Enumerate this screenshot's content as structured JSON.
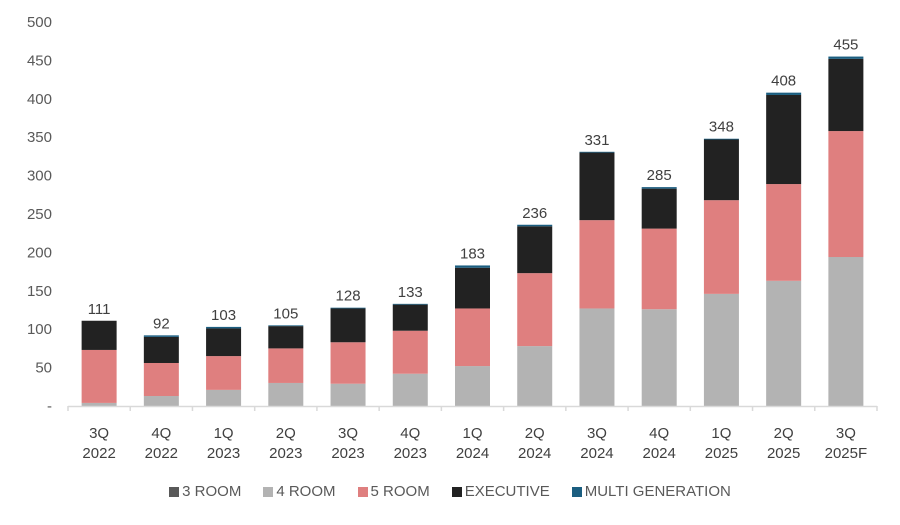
{
  "chart_data": {
    "type": "bar",
    "stacked": true,
    "title": "",
    "xlabel": "",
    "ylabel": "",
    "ylim": [
      0,
      500
    ],
    "yticks": [
      0,
      50,
      100,
      150,
      200,
      250,
      300,
      350,
      400,
      450,
      500
    ],
    "ytick_labels": [
      "-",
      "50",
      "100",
      "150",
      "200",
      "250",
      "300",
      "350",
      "400",
      "450",
      "500"
    ],
    "grid": false,
    "legend_position": "bottom",
    "categories": [
      [
        "3Q",
        "2022"
      ],
      [
        "4Q",
        "2022"
      ],
      [
        "1Q",
        "2023"
      ],
      [
        "2Q",
        "2023"
      ],
      [
        "3Q",
        "2023"
      ],
      [
        "4Q",
        "2023"
      ],
      [
        "1Q",
        "2024"
      ],
      [
        "2Q",
        "2024"
      ],
      [
        "3Q",
        "2024"
      ],
      [
        "4Q",
        "2024"
      ],
      [
        "1Q",
        "2025"
      ],
      [
        "2Q",
        "2025"
      ],
      [
        "3Q",
        "2025F"
      ]
    ],
    "series": [
      {
        "name": "3 ROOM",
        "color": "#595959",
        "values": [
          0,
          0,
          0,
          0,
          0,
          0,
          0,
          0,
          0,
          0,
          0,
          0,
          0
        ]
      },
      {
        "name": "4 ROOM",
        "color": "#b3b3b3",
        "values": [
          4,
          13,
          21,
          30,
          29,
          42,
          52,
          78,
          127,
          126,
          146,
          163,
          194
        ]
      },
      {
        "name": "5 ROOM",
        "color": "#df7f7f",
        "values": [
          69,
          43,
          44,
          45,
          54,
          56,
          75,
          95,
          115,
          105,
          122,
          126,
          164
        ]
      },
      {
        "name": "EXECUTIVE",
        "color": "#222222",
        "values": [
          38,
          34,
          36,
          29,
          44,
          34,
          53,
          61,
          88,
          52,
          79,
          116,
          94
        ]
      },
      {
        "name": "MULTI GENERATION",
        "color": "#1b5e80",
        "values": [
          0,
          2,
          2,
          1,
          1,
          1,
          3,
          2,
          1,
          2,
          1,
          3,
          3
        ]
      }
    ],
    "totals": [
      111,
      92,
      103,
      105,
      128,
      133,
      183,
      236,
      331,
      285,
      348,
      408,
      455
    ]
  }
}
